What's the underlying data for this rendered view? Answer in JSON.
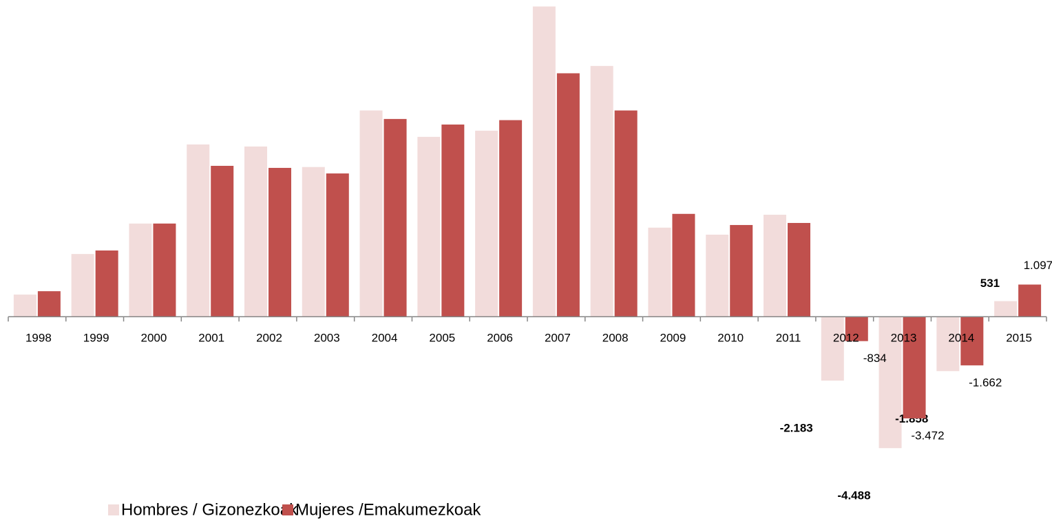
{
  "chart_data": {
    "type": "bar",
    "categories": [
      "1998",
      "1999",
      "2000",
      "2001",
      "2002",
      "2003",
      "2004",
      "2005",
      "2006",
      "2007",
      "2008",
      "2009",
      "2010",
      "2011",
      "2012",
      "2013",
      "2014",
      "2015"
    ],
    "series": [
      {
        "name": "Hombres / Gizonezkoak",
        "color": "#f2dcdb",
        "values": [
          755,
          2140,
          3180,
          5880,
          5810,
          5110,
          7040,
          6140,
          6350,
          10590,
          8560,
          3040,
          2800,
          3480,
          -2183,
          -4488,
          -1858,
          531
        ],
        "value_labels": [
          null,
          null,
          null,
          null,
          null,
          null,
          null,
          null,
          null,
          null,
          null,
          null,
          null,
          null,
          "-2.183",
          "-4.488",
          "-1.858",
          "531"
        ]
      },
      {
        "name": "Mujeres /Emakumezkoak",
        "color": "#c0504d",
        "values": [
          870,
          2260,
          3180,
          5150,
          5080,
          4890,
          6750,
          6560,
          6710,
          8310,
          7040,
          3510,
          3130,
          3200,
          -834,
          -3472,
          -1662,
          1097
        ],
        "value_labels": [
          null,
          null,
          null,
          null,
          null,
          null,
          null,
          null,
          null,
          null,
          null,
          null,
          null,
          null,
          "-834",
          "-3.472",
          "-1.662",
          "1.097"
        ]
      }
    ],
    "ylim": [
      -4600,
      10600
    ]
  }
}
